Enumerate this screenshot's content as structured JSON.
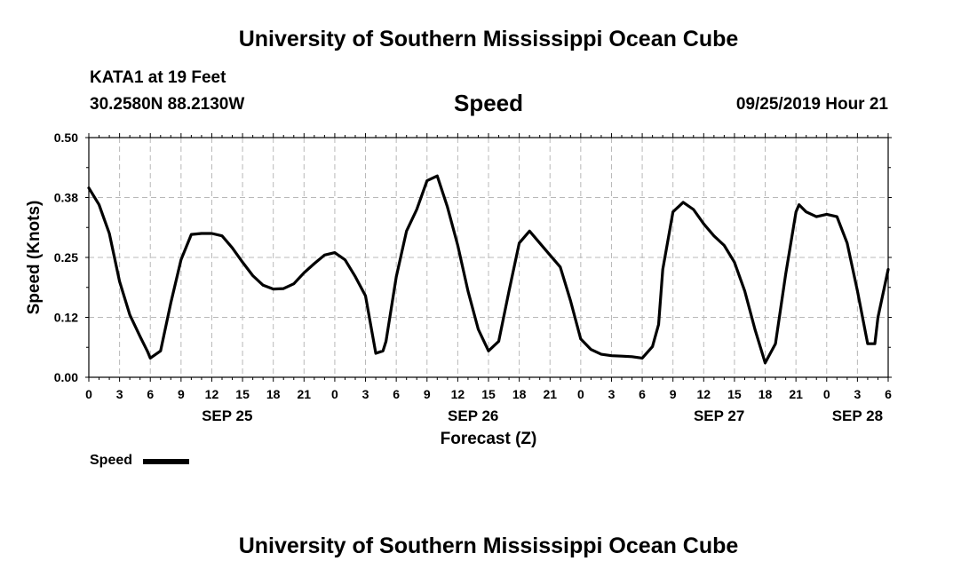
{
  "header": {
    "title": "University of Southern Mississippi Ocean Cube",
    "station": "KATA1 at 19 Feet",
    "coords": "30.2580N 88.2130W",
    "variable": "Speed",
    "datetime": "09/25/2019 Hour 21"
  },
  "footer": {
    "title": "University of Southern Mississippi Ocean Cube"
  },
  "legend": {
    "label": "Speed"
  },
  "chart_data": {
    "type": "line",
    "title": "Speed",
    "xlabel": "Forecast (Z)",
    "ylabel": "Speed (Knots)",
    "ylim": [
      0,
      0.5
    ],
    "yticks": [
      "0.00",
      "0.12",
      "0.25",
      "0.38",
      "0.50"
    ],
    "xlim": [
      0,
      78
    ],
    "x_tick_labels": [
      "0",
      "3",
      "6",
      "9",
      "12",
      "15",
      "18",
      "21",
      "0",
      "3",
      "6",
      "9",
      "12",
      "15",
      "18",
      "21",
      "0",
      "3",
      "6",
      "9",
      "12",
      "15",
      "18",
      "21",
      "0",
      "3",
      "6"
    ],
    "date_labels": [
      {
        "label": "SEP 25",
        "hour": 13.5
      },
      {
        "label": "SEP 26",
        "hour": 37.5
      },
      {
        "label": "SEP 27",
        "hour": 61.5
      },
      {
        "label": "SEP 28",
        "hour": 75
      }
    ],
    "grid": true,
    "line_color": "#000000",
    "series": [
      {
        "name": "Speed",
        "x": [
          0,
          1,
          1.5,
          2,
          3,
          4,
          5,
          5.7,
          6,
          7,
          8,
          9,
          10,
          11,
          12,
          13,
          14,
          15,
          16,
          17,
          18,
          19,
          20,
          21,
          22,
          23,
          24,
          25,
          26,
          27,
          28,
          28.7,
          29,
          30,
          31,
          32,
          33,
          34,
          35,
          36,
          37,
          38,
          39,
          40,
          41,
          42,
          43,
          44,
          45,
          46,
          47,
          48,
          49,
          50,
          51,
          52,
          53,
          54,
          55,
          55.6,
          56,
          57,
          58,
          59,
          60,
          61,
          62,
          63,
          64,
          65,
          66,
          67,
          68,
          69,
          69.3,
          70,
          71,
          72,
          73,
          74,
          75,
          76,
          76.7,
          77,
          78
        ],
        "y": [
          0.395,
          0.36,
          0.33,
          0.3,
          0.2,
          0.13,
          0.085,
          0.055,
          0.04,
          0.055,
          0.155,
          0.245,
          0.298,
          0.3,
          0.3,
          0.295,
          0.27,
          0.24,
          0.212,
          0.192,
          0.184,
          0.185,
          0.195,
          0.218,
          0.237,
          0.255,
          0.26,
          0.245,
          0.21,
          0.17,
          0.05,
          0.055,
          0.075,
          0.21,
          0.305,
          0.35,
          0.41,
          0.42,
          0.355,
          0.275,
          0.18,
          0.1,
          0.055,
          0.075,
          0.18,
          0.28,
          0.305,
          0.28,
          0.255,
          0.23,
          0.16,
          0.08,
          0.058,
          0.048,
          0.045,
          0.044,
          0.043,
          0.04,
          0.064,
          0.11,
          0.225,
          0.345,
          0.365,
          0.35,
          0.32,
          0.295,
          0.275,
          0.24,
          0.18,
          0.1,
          0.03,
          0.07,
          0.215,
          0.345,
          0.36,
          0.345,
          0.335,
          0.34,
          0.335,
          0.28,
          0.18,
          0.07,
          0.07,
          0.125,
          0.225
        ]
      }
    ]
  }
}
